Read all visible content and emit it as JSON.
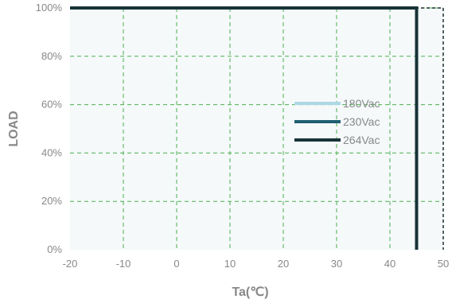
{
  "chart_data": {
    "type": "line",
    "title": "",
    "xlabel": "Ta(℃)",
    "ylabel": "LOAD",
    "xlim": [
      -20,
      50
    ],
    "ylim": [
      0,
      100
    ],
    "xticks": [
      "-20",
      "-10",
      "0",
      "10",
      "20",
      "30",
      "40",
      "50"
    ],
    "yticks": [
      "0%",
      "20%",
      "40%",
      "60%",
      "80%",
      "100%"
    ],
    "grid": true,
    "legend_position": "center-right",
    "series": [
      {
        "name": "180Vac",
        "color": "#add8e6",
        "points": [
          [
            -20,
            100
          ],
          [
            45,
            100
          ],
          [
            45,
            0
          ]
        ]
      },
      {
        "name": "230Vac",
        "color": "#1f5f73",
        "points": [
          [
            -20,
            100
          ],
          [
            45,
            100
          ],
          [
            45,
            0
          ]
        ]
      },
      {
        "name": "264Vac",
        "color": "#173338",
        "points": [
          [
            -20,
            100
          ],
          [
            45,
            100
          ],
          [
            45,
            0
          ]
        ]
      }
    ]
  }
}
